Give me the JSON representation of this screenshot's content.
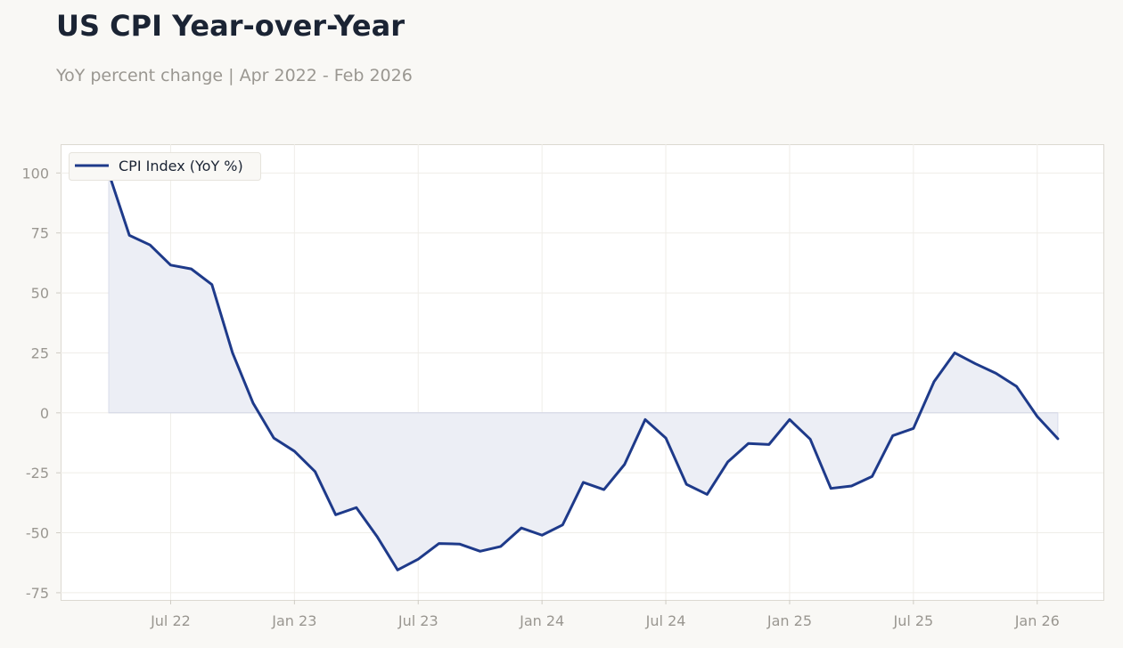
{
  "title": "US CPI Year-over-Year",
  "subtitle": "YoY percent change | Apr 2022 - Feb 2026",
  "chart_data": {
    "type": "area",
    "title": "US CPI Year-over-Year",
    "subtitle": "YoY percent change | Apr 2022 - Feb 2026",
    "xlabel": "",
    "ylabel": "",
    "x_start": "2022-04",
    "x_end": "2026-02",
    "x_ticks": [
      {
        "date": "2022-07",
        "label": "Jul 22"
      },
      {
        "date": "2023-01",
        "label": "Jan 23"
      },
      {
        "date": "2023-07",
        "label": "Jul 23"
      },
      {
        "date": "2024-01",
        "label": "Jan 24"
      },
      {
        "date": "2024-07",
        "label": "Jul 24"
      },
      {
        "date": "2025-01",
        "label": "Jan 25"
      },
      {
        "date": "2025-07",
        "label": "Jul 25"
      },
      {
        "date": "2026-01",
        "label": "Jan 26"
      }
    ],
    "y_ticks": [
      100,
      75,
      50,
      25,
      0,
      -25,
      -50,
      -75
    ],
    "ylim": [
      -78,
      112
    ],
    "grid": true,
    "legend_position": "top-left",
    "series": [
      {
        "name": "CPI Index (YoY %)",
        "color": "#1e3a8a",
        "fill_color": "#eceef5",
        "x": [
          "2022-04",
          "2022-05",
          "2022-06",
          "2022-07",
          "2022-08",
          "2022-09",
          "2022-10",
          "2022-11",
          "2022-12",
          "2023-01",
          "2023-02",
          "2023-03",
          "2023-04",
          "2023-05",
          "2023-06",
          "2023-07",
          "2023-08",
          "2023-09",
          "2023-10",
          "2023-11",
          "2023-12",
          "2024-01",
          "2024-02",
          "2024-03",
          "2024-04",
          "2024-05",
          "2024-06",
          "2024-07",
          "2024-08",
          "2024-09",
          "2024-10",
          "2024-11",
          "2024-12",
          "2025-01",
          "2025-02",
          "2025-03",
          "2025-04",
          "2025-05",
          "2025-06",
          "2025-07",
          "2025-08",
          "2025-09",
          "2025-10",
          "2025-11",
          "2025-12",
          "2026-01",
          "2026-02"
        ],
        "values": [
          100,
          74,
          70,
          61.6,
          60,
          53.5,
          25,
          4,
          -10.5,
          -16,
          -24.5,
          -42.5,
          -39.5,
          -51.5,
          -65.5,
          -61,
          -54.5,
          -54.7,
          -57.7,
          -55.7,
          -48,
          -51,
          -46.7,
          -29,
          -32,
          -21.5,
          -2.8,
          -10.5,
          -29.8,
          -34,
          -20.5,
          -12.8,
          -13.2,
          -2.8,
          -11,
          -31.5,
          -30.5,
          -26.5,
          -9.5,
          -6.5,
          13,
          25,
          20.5,
          16.5,
          11,
          -1.5,
          -10.8
        ]
      }
    ]
  }
}
